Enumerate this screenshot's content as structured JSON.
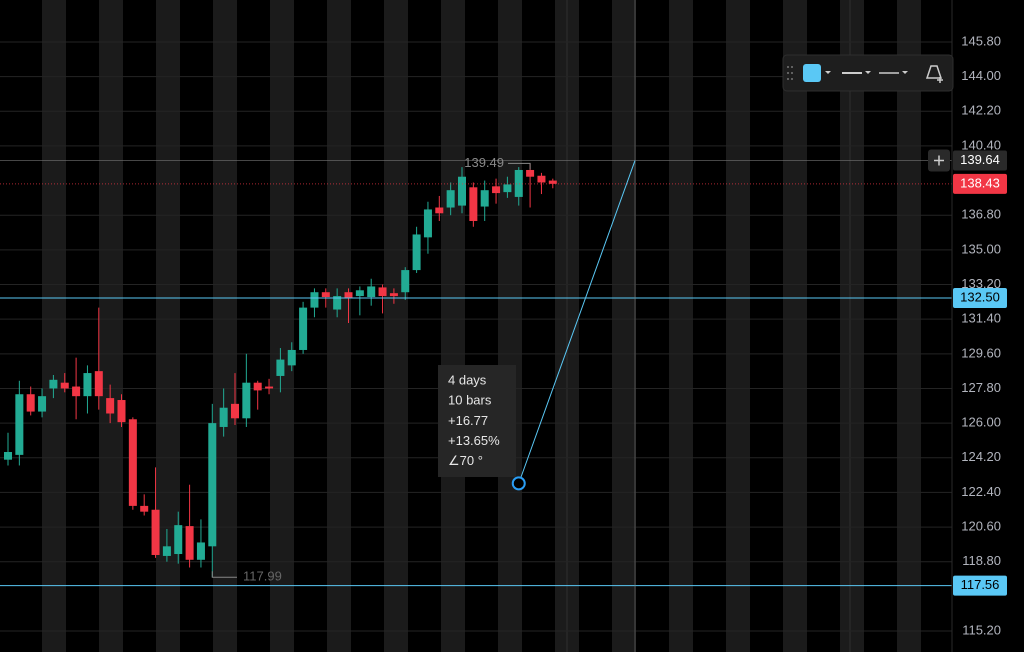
{
  "chart_data": {
    "type": "candlestick",
    "open": [
      124.1,
      124.35,
      127.5,
      126.6,
      127.8,
      128.1,
      127.9,
      127.4,
      128.7,
      127.3,
      127.2,
      126.2,
      121.7,
      121.5,
      119.1,
      119.2,
      120.65,
      118.9,
      119.6,
      125.8,
      127.0,
      126.25,
      128.1,
      127.9,
      128.45,
      129.0,
      129.8,
      132.0,
      132.8,
      131.9,
      132.8,
      132.6,
      132.55,
      133.05,
      132.75,
      132.8,
      133.95,
      135.65,
      137.2,
      137.2,
      137.3,
      138.25,
      137.25,
      138.3,
      138.0,
      137.75,
      139.15,
      138.85,
      138.6
    ],
    "high": [
      125.5,
      128.2,
      127.9,
      127.8,
      128.5,
      128.6,
      129.4,
      129.0,
      132.0,
      128.0,
      127.5,
      126.3,
      122.3,
      123.7,
      120.5,
      121.4,
      122.8,
      121.0,
      127.0,
      127.8,
      128.6,
      129.6,
      128.2,
      128.3,
      129.9,
      130.2,
      132.3,
      133.0,
      133.0,
      133.0,
      133.0,
      133.1,
      133.5,
      133.2,
      133.0,
      134.1,
      136.2,
      137.5,
      137.8,
      138.5,
      139.3,
      138.5,
      138.6,
      138.7,
      138.8,
      139.3,
      139.49,
      139.0,
      138.7
    ],
    "low": [
      123.8,
      123.8,
      126.4,
      126.3,
      127.3,
      127.6,
      126.2,
      126.5,
      126.7,
      126.0,
      125.8,
      121.5,
      121.2,
      119.0,
      118.8,
      118.7,
      118.5,
      118.5,
      117.99,
      125.3,
      125.9,
      125.8,
      126.7,
      127.5,
      127.6,
      128.7,
      129.6,
      131.5,
      132.0,
      131.5,
      131.2,
      131.6,
      132.1,
      131.7,
      132.2,
      132.4,
      133.8,
      134.8,
      136.5,
      136.8,
      136.9,
      136.2,
      136.5,
      137.4,
      137.7,
      137.3,
      137.2,
      137.9,
      138.2
    ],
    "close": [
      124.5,
      127.5,
      126.6,
      127.4,
      128.25,
      127.8,
      127.4,
      128.6,
      127.4,
      126.5,
      126.05,
      121.7,
      121.4,
      119.15,
      119.6,
      120.7,
      118.9,
      119.8,
      126.0,
      126.8,
      126.25,
      128.1,
      127.7,
      127.8,
      129.3,
      129.8,
      132.0,
      132.8,
      132.55,
      132.6,
      132.5,
      132.9,
      133.1,
      132.6,
      132.6,
      133.95,
      135.8,
      137.1,
      136.9,
      138.1,
      138.8,
      136.5,
      138.1,
      137.95,
      138.4,
      139.15,
      138.8,
      138.5,
      138.43
    ],
    "up_color": "#22ab94",
    "down_color": "#f23645",
    "ylim": [
      114.11,
      147.98
    ],
    "yticks": [
      {
        "value": 145.8,
        "label": "145.80"
      },
      {
        "value": 144.0,
        "label": "144.00"
      },
      {
        "value": 142.2,
        "label": "142.20"
      },
      {
        "value": 140.4,
        "label": "140.40"
      },
      {
        "value": 136.8,
        "label": "136.80"
      },
      {
        "value": 135.0,
        "label": "135.00"
      },
      {
        "value": 133.2,
        "label": "133.20"
      },
      {
        "value": 131.4,
        "label": "131.40"
      },
      {
        "value": 129.6,
        "label": "129.60"
      },
      {
        "value": 127.8,
        "label": "127.80"
      },
      {
        "value": 126.0,
        "label": "126.00"
      },
      {
        "value": 124.2,
        "label": "124.20"
      },
      {
        "value": 122.4,
        "label": "122.40"
      },
      {
        "value": 120.6,
        "label": "120.60"
      },
      {
        "value": 118.8,
        "label": "118.80"
      },
      {
        "value": 115.2,
        "label": "115.20"
      }
    ],
    "grid": true,
    "price_lines": [
      {
        "value": 132.5,
        "label": "132.50",
        "color": "#5ac8f5"
      },
      {
        "value": 117.56,
        "label": "117.56",
        "color": "#5ac8f5"
      }
    ],
    "last_price": {
      "value": 138.43,
      "label": "138.43",
      "color": "#f23645"
    },
    "crosshair": {
      "value": 139.64,
      "label": "139.64"
    },
    "high_marker": {
      "value": 139.49,
      "label": "139.49"
    },
    "low_marker": {
      "value": 117.99,
      "label": "117.99"
    },
    "measure": {
      "from": 122.87,
      "lines": [
        "4 days",
        "10 bars",
        "+16.77",
        "+13.65%",
        "∠70 °"
      ]
    }
  }
}
